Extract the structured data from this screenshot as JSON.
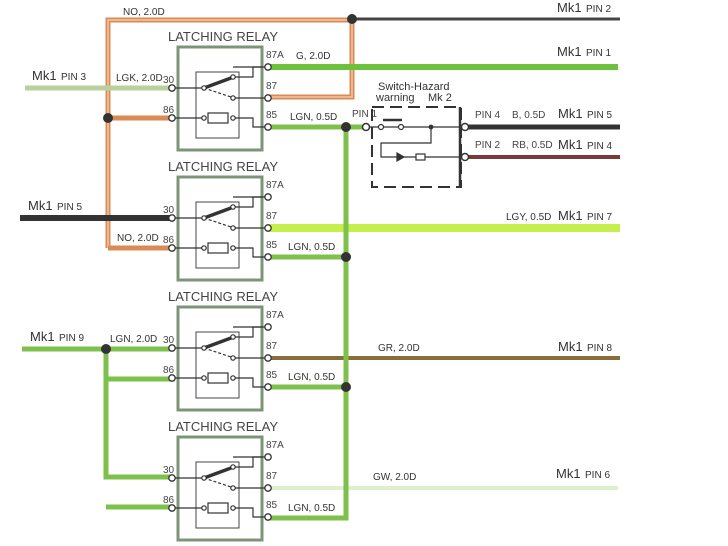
{
  "relay_title": "LATCHING RELAY",
  "relay_pins": {
    "p30": "30",
    "p86": "86",
    "p87a": "87A",
    "p87": "87",
    "p85": "85"
  },
  "wires": {
    "no_top": "NO, 2.0D",
    "no_relay2": "NO, 2.0D",
    "lgk": "LGK, 2.0D",
    "g": "G, 2.0D",
    "lgn_r1": "LGN, 0.5D",
    "lgn_r2": "LGN, 0.5D",
    "lgn_r3": "LGN, 0.5D",
    "lgn_r4": "LGN, 0.5D",
    "lgn_in": "LGN, 2.0D",
    "b": "B, 0.5D",
    "rb": "RB, 0.5D",
    "lgy": "LGY, 0.5D",
    "gr": "GR, 2.0D",
    "gw": "GW, 2.0D"
  },
  "connectors": {
    "left_pin3": {
      "mk": "Mk1",
      "pin": "PIN 3"
    },
    "left_pin5": {
      "mk": "Mk1",
      "pin": "PIN 5"
    },
    "left_pin9": {
      "mk": "Mk1",
      "pin": "PIN 9"
    },
    "right_pin2": {
      "mk": "Mk1",
      "pin": "PIN 2"
    },
    "right_pin1": {
      "mk": "Mk1",
      "pin": "PIN 1"
    },
    "right_pin5": {
      "mk": "Mk1",
      "pin": "PIN 5"
    },
    "right_pin4": {
      "mk": "Mk1",
      "pin": "PIN 4"
    },
    "right_pin7": {
      "mk": "Mk1",
      "pin": "PIN 7"
    },
    "right_pin8": {
      "mk": "Mk1",
      "pin": "PIN 8"
    },
    "right_pin6": {
      "mk": "Mk1",
      "pin": "PIN 6"
    }
  },
  "switch": {
    "title": "Switch-Hazard",
    "subtitle": "warning",
    "mk": "Mk 2",
    "pin1": "PIN 1",
    "pin4": "PIN 4",
    "pin2": "PIN 2"
  },
  "colors": {
    "orange": "#d98a55",
    "green": "#7cc24a",
    "light_green": "#b9d19c",
    "lime": "#c5ef4c",
    "black": "#333333",
    "dark_red": "#7a3a3a",
    "brown": "#8a6d3b",
    "gw": "#dfeecb",
    "relay_box": "#7d9478"
  }
}
